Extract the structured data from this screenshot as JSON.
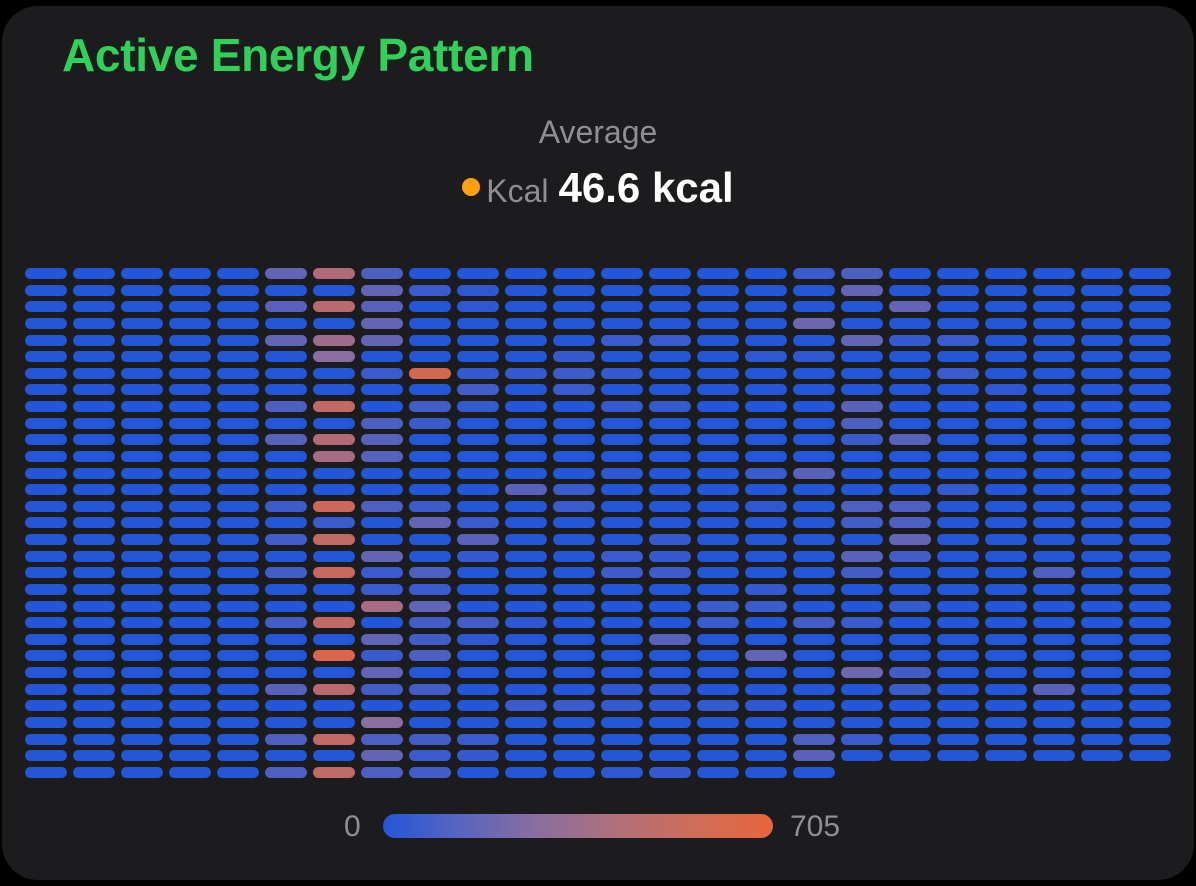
{
  "header": {
    "title": "Active Energy Pattern"
  },
  "summary": {
    "label": "Average",
    "series_name": "Kcal",
    "series_color": "#ff9f0a",
    "value": "46.6 kcal"
  },
  "legend": {
    "min_label": "0",
    "max_label": "705",
    "min": 0,
    "max": 705,
    "colors": [
      "#2456d9",
      "#8b6ea0",
      "#e8653d"
    ]
  },
  "chart_data": {
    "type": "heatmap",
    "title": "Active Energy Pattern",
    "subtitle": "Average Kcal 46.6 kcal",
    "columns": 24,
    "rows": 31,
    "last_row_cells": 17,
    "value_range": [
      0,
      705
    ],
    "color_scale": {
      "low": "#2456d9",
      "mid": "#8b6ea0",
      "high": "#e8653d"
    },
    "note": "Cells are row-major; col index = hour of day (0-23), row index = day. Values are intensity fraction (0-1) of 705 kcal; unspecified cells ~0.",
    "nonzero_cells": [
      {
        "c": 5,
        "r": 0,
        "v": 0.3
      },
      {
        "c": 5,
        "r": 2,
        "v": 0.25
      },
      {
        "c": 5,
        "r": 4,
        "v": 0.3
      },
      {
        "c": 5,
        "r": 8,
        "v": 0.2
      },
      {
        "c": 5,
        "r": 10,
        "v": 0.25
      },
      {
        "c": 5,
        "r": 14,
        "v": 0.12
      },
      {
        "c": 5,
        "r": 16,
        "v": 0.15
      },
      {
        "c": 5,
        "r": 18,
        "v": 0.15
      },
      {
        "c": 5,
        "r": 21,
        "v": 0.15
      },
      {
        "c": 5,
        "r": 25,
        "v": 0.25
      },
      {
        "c": 5,
        "r": 28,
        "v": 0.2
      },
      {
        "c": 5,
        "r": 30,
        "v": 0.2
      },
      {
        "c": 6,
        "r": 0,
        "v": 0.7
      },
      {
        "c": 6,
        "r": 2,
        "v": 0.75
      },
      {
        "c": 6,
        "r": 4,
        "v": 0.6
      },
      {
        "c": 6,
        "r": 5,
        "v": 0.5
      },
      {
        "c": 6,
        "r": 8,
        "v": 0.8
      },
      {
        "c": 6,
        "r": 10,
        "v": 0.72
      },
      {
        "c": 6,
        "r": 11,
        "v": 0.65
      },
      {
        "c": 6,
        "r": 14,
        "v": 0.85
      },
      {
        "c": 6,
        "r": 15,
        "v": 0.1
      },
      {
        "c": 6,
        "r": 16,
        "v": 0.8
      },
      {
        "c": 6,
        "r": 18,
        "v": 0.82
      },
      {
        "c": 6,
        "r": 21,
        "v": 0.8
      },
      {
        "c": 6,
        "r": 23,
        "v": 0.92
      },
      {
        "c": 6,
        "r": 25,
        "v": 0.75
      },
      {
        "c": 6,
        "r": 28,
        "v": 0.8
      },
      {
        "c": 6,
        "r": 30,
        "v": 0.78
      },
      {
        "c": 7,
        "r": 0,
        "v": 0.2
      },
      {
        "c": 7,
        "r": 1,
        "v": 0.3
      },
      {
        "c": 7,
        "r": 2,
        "v": 0.25
      },
      {
        "c": 7,
        "r": 3,
        "v": 0.3
      },
      {
        "c": 7,
        "r": 4,
        "v": 0.3
      },
      {
        "c": 7,
        "r": 6,
        "v": 0.1
      },
      {
        "c": 7,
        "r": 9,
        "v": 0.2
      },
      {
        "c": 7,
        "r": 10,
        "v": 0.25
      },
      {
        "c": 7,
        "r": 11,
        "v": 0.25
      },
      {
        "c": 7,
        "r": 14,
        "v": 0.2
      },
      {
        "c": 7,
        "r": 17,
        "v": 0.3
      },
      {
        "c": 7,
        "r": 18,
        "v": 0.1
      },
      {
        "c": 7,
        "r": 19,
        "v": 0.1
      },
      {
        "c": 7,
        "r": 20,
        "v": 0.65
      },
      {
        "c": 7,
        "r": 22,
        "v": 0.3
      },
      {
        "c": 7,
        "r": 23,
        "v": 0.1
      },
      {
        "c": 7,
        "r": 24,
        "v": 0.3
      },
      {
        "c": 7,
        "r": 25,
        "v": 0.15
      },
      {
        "c": 7,
        "r": 27,
        "v": 0.5
      },
      {
        "c": 7,
        "r": 28,
        "v": 0.2
      },
      {
        "c": 7,
        "r": 29,
        "v": 0.3
      },
      {
        "c": 7,
        "r": 30,
        "v": 0.2
      },
      {
        "c": 8,
        "r": 1,
        "v": 0.1
      },
      {
        "c": 8,
        "r": 6,
        "v": 0.9
      },
      {
        "c": 8,
        "r": 8,
        "v": 0.15
      },
      {
        "c": 8,
        "r": 9,
        "v": 0.1
      },
      {
        "c": 8,
        "r": 14,
        "v": 0.12
      },
      {
        "c": 8,
        "r": 15,
        "v": 0.3
      },
      {
        "c": 8,
        "r": 18,
        "v": 0.2
      },
      {
        "c": 8,
        "r": 19,
        "v": 0.1
      },
      {
        "c": 8,
        "r": 20,
        "v": 0.3
      },
      {
        "c": 8,
        "r": 21,
        "v": 0.15
      },
      {
        "c": 8,
        "r": 22,
        "v": 0.15
      },
      {
        "c": 8,
        "r": 23,
        "v": 0.2
      },
      {
        "c": 8,
        "r": 25,
        "v": 0.15
      },
      {
        "c": 8,
        "r": 28,
        "v": 0.15
      },
      {
        "c": 8,
        "r": 29,
        "v": 0.1
      },
      {
        "c": 8,
        "r": 30,
        "v": 0.15
      },
      {
        "c": 9,
        "r": 1,
        "v": 0.05
      },
      {
        "c": 9,
        "r": 2,
        "v": 0.05
      },
      {
        "c": 9,
        "r": 6,
        "v": 0.08
      },
      {
        "c": 9,
        "r": 7,
        "v": 0.15
      },
      {
        "c": 9,
        "r": 8,
        "v": 0.08
      },
      {
        "c": 9,
        "r": 15,
        "v": 0.1
      },
      {
        "c": 9,
        "r": 16,
        "v": 0.25
      },
      {
        "c": 9,
        "r": 17,
        "v": 0.08
      },
      {
        "c": 9,
        "r": 21,
        "v": 0.15
      },
      {
        "c": 9,
        "r": 22,
        "v": 0.05
      },
      {
        "c": 9,
        "r": 28,
        "v": 0.1
      },
      {
        "c": 9,
        "r": 29,
        "v": 0.08
      },
      {
        "c": 10,
        "r": 6,
        "v": 0.08
      },
      {
        "c": 10,
        "r": 13,
        "v": 0.25
      },
      {
        "c": 10,
        "r": 21,
        "v": 0.05
      },
      {
        "c": 10,
        "r": 26,
        "v": 0.1
      },
      {
        "c": 11,
        "r": 5,
        "v": 0.08
      },
      {
        "c": 11,
        "r": 6,
        "v": 0.12
      },
      {
        "c": 11,
        "r": 7,
        "v": 0.1
      },
      {
        "c": 11,
        "r": 13,
        "v": 0.1
      },
      {
        "c": 11,
        "r": 14,
        "v": 0.1
      },
      {
        "c": 11,
        "r": 26,
        "v": 0.1
      },
      {
        "c": 12,
        "r": 4,
        "v": 0.1
      },
      {
        "c": 12,
        "r": 6,
        "v": 0.08
      },
      {
        "c": 12,
        "r": 8,
        "v": 0.08
      },
      {
        "c": 12,
        "r": 12,
        "v": 0.05
      },
      {
        "c": 12,
        "r": 17,
        "v": 0.1
      },
      {
        "c": 12,
        "r": 18,
        "v": 0.12
      },
      {
        "c": 12,
        "r": 25,
        "v": 0.05
      },
      {
        "c": 12,
        "r": 26,
        "v": 0.08
      },
      {
        "c": 12,
        "r": 30,
        "v": 0.05
      },
      {
        "c": 13,
        "r": 4,
        "v": 0.1
      },
      {
        "c": 13,
        "r": 8,
        "v": 0.08
      },
      {
        "c": 13,
        "r": 16,
        "v": 0.08
      },
      {
        "c": 13,
        "r": 17,
        "v": 0.08
      },
      {
        "c": 13,
        "r": 18,
        "v": 0.12
      },
      {
        "c": 13,
        "r": 22,
        "v": 0.25
      },
      {
        "c": 13,
        "r": 25,
        "v": 0.05
      },
      {
        "c": 13,
        "r": 26,
        "v": 0.05
      },
      {
        "c": 13,
        "r": 30,
        "v": 0.08
      },
      {
        "c": 14,
        "r": 20,
        "v": 0.12
      },
      {
        "c": 14,
        "r": 21,
        "v": 0.1
      },
      {
        "c": 14,
        "r": 26,
        "v": 0.08
      },
      {
        "c": 15,
        "r": 5,
        "v": 0.05
      },
      {
        "c": 15,
        "r": 12,
        "v": 0.1
      },
      {
        "c": 15,
        "r": 14,
        "v": 0.05
      },
      {
        "c": 15,
        "r": 19,
        "v": 0.08
      },
      {
        "c": 15,
        "r": 20,
        "v": 0.12
      },
      {
        "c": 15,
        "r": 23,
        "v": 0.3
      },
      {
        "c": 15,
        "r": 26,
        "v": 0.05
      },
      {
        "c": 16,
        "r": 0,
        "v": 0.1
      },
      {
        "c": 16,
        "r": 3,
        "v": 0.35
      },
      {
        "c": 16,
        "r": 5,
        "v": 0.05
      },
      {
        "c": 16,
        "r": 12,
        "v": 0.25
      },
      {
        "c": 16,
        "r": 21,
        "v": 0.15
      },
      {
        "c": 16,
        "r": 28,
        "v": 0.2
      },
      {
        "c": 16,
        "r": 29,
        "v": 0.25
      },
      {
        "c": 17,
        "r": 0,
        "v": 0.2
      },
      {
        "c": 17,
        "r": 1,
        "v": 0.3
      },
      {
        "c": 17,
        "r": 4,
        "v": 0.3
      },
      {
        "c": 17,
        "r": 8,
        "v": 0.25
      },
      {
        "c": 17,
        "r": 9,
        "v": 0.2
      },
      {
        "c": 17,
        "r": 10,
        "v": 0.1
      },
      {
        "c": 17,
        "r": 14,
        "v": 0.2
      },
      {
        "c": 17,
        "r": 15,
        "v": 0.15
      },
      {
        "c": 17,
        "r": 17,
        "v": 0.25
      },
      {
        "c": 17,
        "r": 18,
        "v": 0.15
      },
      {
        "c": 17,
        "r": 21,
        "v": 0.1
      },
      {
        "c": 17,
        "r": 24,
        "v": 0.35
      },
      {
        "c": 17,
        "r": 28,
        "v": 0.1
      },
      {
        "c": 18,
        "r": 2,
        "v": 0.3
      },
      {
        "c": 18,
        "r": 4,
        "v": 0.08
      },
      {
        "c": 18,
        "r": 10,
        "v": 0.25
      },
      {
        "c": 18,
        "r": 14,
        "v": 0.2
      },
      {
        "c": 18,
        "r": 15,
        "v": 0.2
      },
      {
        "c": 18,
        "r": 16,
        "v": 0.3
      },
      {
        "c": 18,
        "r": 17,
        "v": 0.15
      },
      {
        "c": 18,
        "r": 20,
        "v": 0.08
      },
      {
        "c": 18,
        "r": 24,
        "v": 0.15
      },
      {
        "c": 18,
        "r": 25,
        "v": 0.12
      },
      {
        "c": 19,
        "r": 4,
        "v": 0.1
      },
      {
        "c": 19,
        "r": 6,
        "v": 0.1
      },
      {
        "c": 19,
        "r": 13,
        "v": 0.08
      },
      {
        "c": 20,
        "r": 7,
        "v": 0.05
      },
      {
        "c": 21,
        "r": 18,
        "v": 0.2
      },
      {
        "c": 21,
        "r": 25,
        "v": 0.25
      }
    ]
  }
}
